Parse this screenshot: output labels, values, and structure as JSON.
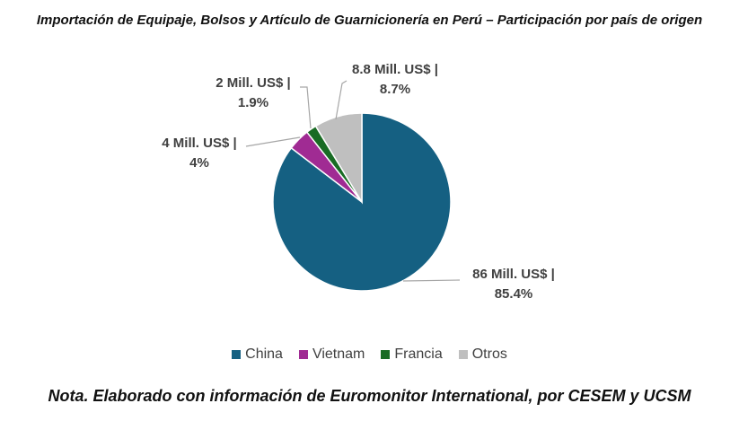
{
  "title": "Importación de Equipaje, Bolsos y Artículo de Guarnicionería en Perú – Participación por país de origen",
  "note": "Nota. Elaborado con información de Euromonitor International, por CESEM y UCSM",
  "chart_data": {
    "type": "pie",
    "title": "Importación de Equipaje, Bolsos y Artículo de Guarnicionería en Perú – Participación por país de origen",
    "categories": [
      "China",
      "Vietnam",
      "Francia",
      "Otros"
    ],
    "values": [
      85.4,
      4,
      1.9,
      8.7
    ],
    "amounts_label": [
      "86 Mill. US$ |",
      "4 Mill. US$ |",
      "2  Mill. US$ |",
      "8.8 Mill. US$ |"
    ],
    "percent_label": [
      "85.4%",
      "4%",
      "1.9%",
      "8.7%"
    ],
    "colors": [
      "#156082",
      "#a02b93",
      "#196b24",
      "#bfbfbf"
    ],
    "legend_position": "bottom"
  }
}
